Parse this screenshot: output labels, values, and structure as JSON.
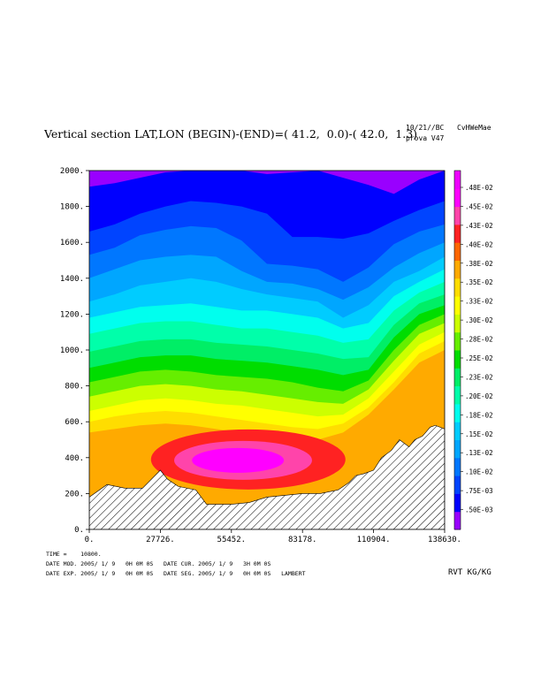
{
  "header": {
    "title": "Vertical section LAT,LON (BEGIN)-(END)=( 41.2,  0.0)-( 42.0,  1.3)",
    "date_code": "10/21//BC",
    "run_id": "CvHWeMae",
    "prova": "prova V47"
  },
  "footer": {
    "time": "TIME =    10800.",
    "line1": "DATE MOD. 2005/ 1/ 9   0H 0M 0S   DATE CUR. 2005/ 1/ 9   3H 0M 0S",
    "line2": "DATE EXP. 2005/ 1/ 9   0H 0M 0S   DATE SEG. 2005/ 1/ 9   0H 0M 0S   LAMBERT",
    "variable": "RVT KG/KG"
  },
  "colors": {
    "levels": [
      "#9900ff",
      "#0000ff",
      "#0044ff",
      "#0077ff",
      "#00a6ff",
      "#00ccff",
      "#00ffee",
      "#00ffaa",
      "#00ee66",
      "#00dd00",
      "#66ee00",
      "#ccff00",
      "#ffff00",
      "#ffdd00",
      "#ffaa00",
      "#ff6600",
      "#ff2222",
      "#ff44aa",
      "#ff00ff",
      "#ee00ff"
    ],
    "terrain_hatch": "#000000"
  },
  "chart_data": {
    "type": "heatmap",
    "title": "Vertical section LAT,LON (BEGIN)-(END)=( 41.2,  0.0)-( 42.0,  1.3)",
    "xlim": [
      0,
      138630
    ],
    "ylim": [
      0,
      2000
    ],
    "x_ticks": [
      0,
      27726,
      55452,
      83178,
      110904,
      138630
    ],
    "x_tick_labels": [
      "0.",
      "27726.",
      "55452.",
      "83178.",
      "110904.",
      "138630."
    ],
    "y_ticks": [
      0,
      200,
      400,
      600,
      800,
      1000,
      1200,
      1400,
      1600,
      1800,
      2000
    ],
    "y_tick_labels": [
      "0.",
      "200.",
      "400.",
      "600.",
      "800.",
      "1000.",
      "1200.",
      "1400.",
      "1600.",
      "1800.",
      "2000."
    ],
    "colorbar_labels": [
      ".50E-03",
      ".75E-03",
      ".10E-02",
      ".13E-02",
      ".15E-02",
      ".18E-02",
      ".20E-02",
      ".23E-02",
      ".25E-02",
      ".28E-02",
      ".30E-02",
      ".33E-02",
      ".35E-02",
      ".38E-02",
      ".40E-02",
      ".43E-02",
      ".45E-02",
      ".48E-02"
    ],
    "terrain": {
      "x": [
        0,
        6932,
        13863,
        20795,
        27726,
        30499,
        34658,
        41589,
        45748,
        48521,
        55452,
        62384,
        69315,
        76247,
        83178,
        90110,
        97041,
        101200,
        103973,
        107000,
        110904,
        114000,
        117836,
        121000,
        124767,
        127000,
        130000,
        133000,
        135000,
        138630
      ],
      "y": [
        180,
        250,
        230,
        230,
        330,
        280,
        240,
        220,
        140,
        140,
        140,
        150,
        180,
        190,
        200,
        200,
        220,
        260,
        300,
        310,
        330,
        400,
        440,
        500,
        460,
        500,
        520,
        570,
        580,
        560
      ]
    },
    "contour_lines": [
      {
        "level": 0.0005,
        "y": [
          1910,
          1930,
          1960,
          1990,
          2000,
          2000,
          2000,
          1980,
          1990,
          2000,
          1960,
          1920,
          1870,
          1950,
          2000
        ]
      },
      {
        "level": 0.00075,
        "y": [
          1660,
          1700,
          1760,
          1800,
          1830,
          1820,
          1800,
          1760,
          1630,
          1630,
          1620,
          1650,
          1720,
          1780,
          1830
        ]
      },
      {
        "level": 0.001,
        "y": [
          1530,
          1570,
          1640,
          1670,
          1690,
          1680,
          1610,
          1480,
          1470,
          1450,
          1380,
          1460,
          1590,
          1660,
          1700
        ]
      },
      {
        "level": 0.00125,
        "y": [
          1400,
          1450,
          1500,
          1520,
          1530,
          1520,
          1440,
          1380,
          1370,
          1340,
          1280,
          1350,
          1460,
          1540,
          1600
        ]
      },
      {
        "level": 0.0015,
        "y": [
          1270,
          1310,
          1360,
          1380,
          1400,
          1380,
          1340,
          1310,
          1290,
          1270,
          1180,
          1250,
          1380,
          1440,
          1520
        ]
      },
      {
        "level": 0.00175,
        "y": [
          1180,
          1210,
          1240,
          1250,
          1260,
          1240,
          1220,
          1220,
          1200,
          1180,
          1120,
          1150,
          1300,
          1380,
          1450
        ]
      },
      {
        "level": 0.002,
        "y": [
          1090,
          1120,
          1150,
          1160,
          1160,
          1140,
          1120,
          1120,
          1100,
          1080,
          1040,
          1060,
          1220,
          1320,
          1380
        ]
      },
      {
        "level": 0.00225,
        "y": [
          990,
          1020,
          1050,
          1060,
          1060,
          1040,
          1030,
          1020,
          1000,
          980,
          950,
          960,
          1140,
          1260,
          1310
        ]
      },
      {
        "level": 0.0025,
        "y": [
          900,
          930,
          960,
          970,
          970,
          950,
          940,
          930,
          910,
          890,
          860,
          890,
          1070,
          1200,
          1250
        ]
      },
      {
        "level": 0.00275,
        "y": [
          820,
          850,
          880,
          890,
          880,
          860,
          850,
          840,
          820,
          790,
          770,
          830,
          1000,
          1140,
          1200
        ]
      },
      {
        "level": 0.003,
        "y": [
          740,
          770,
          800,
          810,
          800,
          780,
          770,
          750,
          730,
          710,
          700,
          780,
          940,
          1090,
          1150
        ]
      },
      {
        "level": 0.00325,
        "y": [
          660,
          690,
          720,
          730,
          720,
          700,
          690,
          670,
          650,
          630,
          640,
          730,
          880,
          1030,
          1100
        ]
      },
      {
        "level": 0.0035,
        "y": [
          600,
          630,
          650,
          660,
          650,
          630,
          610,
          590,
          570,
          560,
          590,
          680,
          820,
          980,
          1050
        ]
      },
      {
        "level": 0.00375,
        "y": [
          540,
          560,
          580,
          590,
          580,
          560,
          540,
          520,
          510,
          500,
          540,
          640,
          780,
          930,
          1000
        ]
      }
    ]
  }
}
